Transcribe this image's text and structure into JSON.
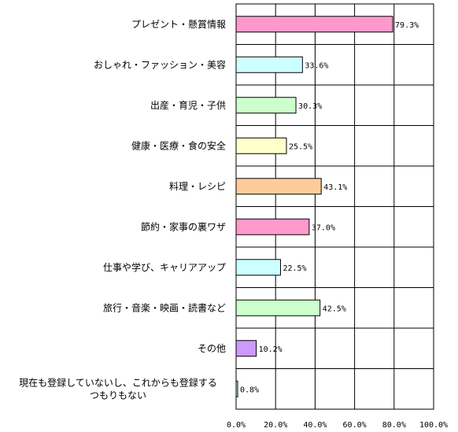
{
  "chart_data": {
    "type": "bar",
    "orientation": "horizontal",
    "categories": [
      "プレゼント・懸賞情報",
      "おしゃれ・ファッション・美容",
      "出産・育児・子供",
      "健康・医療・食の安全",
      "料理・レシピ",
      "節約・家事の裏ワザ",
      "仕事や学び、キャリアアップ",
      "旅行・音楽・映画・読書など",
      "その他",
      "現在も登録していないし、これからも登録する\nつもりもない"
    ],
    "values": [
      79.3,
      33.6,
      30.3,
      25.5,
      43.1,
      37.0,
      22.5,
      42.5,
      10.2,
      0.8
    ],
    "value_labels": [
      "79.3%",
      "33.6%",
      "30.3%",
      "25.5%",
      "43.1%",
      "37.0%",
      "22.5%",
      "42.5%",
      "10.2%",
      "0.8%"
    ],
    "bar_colors": [
      "#ff99cc",
      "#ccffff",
      "#ccffcc",
      "#ffffcc",
      "#ffcc99",
      "#ff99cc",
      "#ccffff",
      "#ccffcc",
      "#cc99ff",
      "#ccffff"
    ],
    "xlim": [
      0,
      100
    ],
    "xticks": [
      "0.0%",
      "20.0%",
      "40.0%",
      "60.0%",
      "80.0%",
      "100.0%"
    ],
    "grid": true,
    "title": "",
    "xlabel": "",
    "ylabel": ""
  }
}
